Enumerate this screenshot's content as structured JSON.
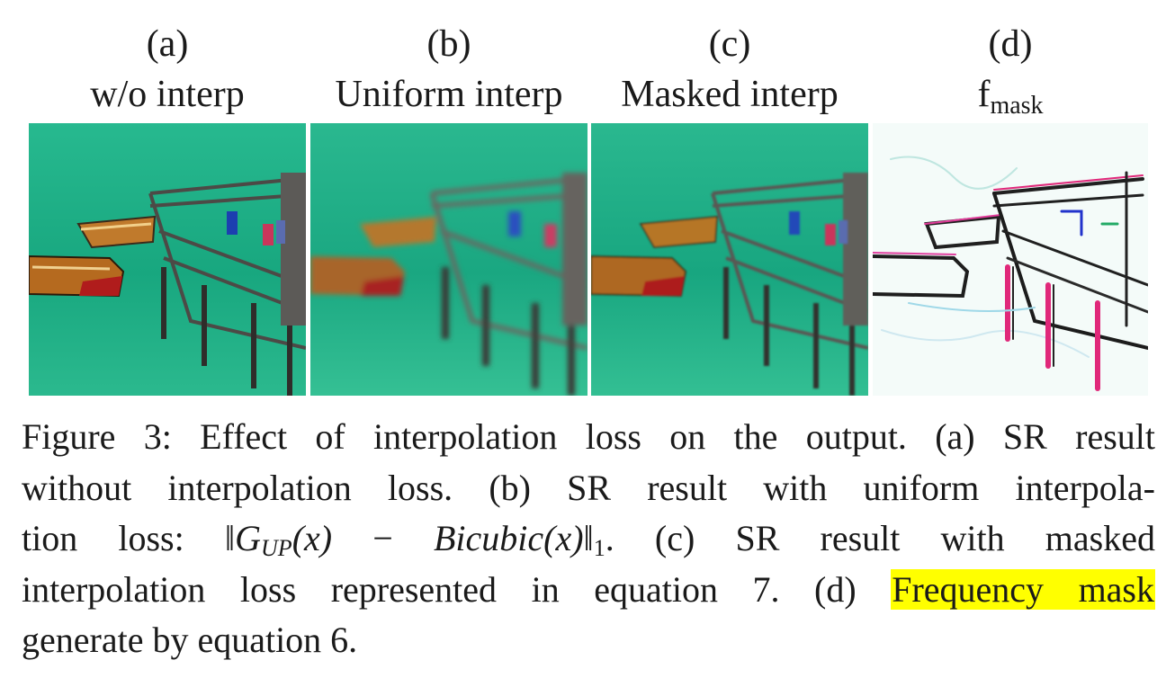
{
  "panels": [
    {
      "letter": "(a)",
      "title": "w/o interp",
      "image_kind": "sharp-aliased"
    },
    {
      "letter": "(b)",
      "title": "Uniform interp",
      "image_kind": "blurred"
    },
    {
      "letter": "(c)",
      "title": "Masked interp",
      "image_kind": "clean"
    },
    {
      "letter": "(d)",
      "title_base": "f",
      "title_sub": "mask",
      "image_kind": "frequency-mask"
    }
  ],
  "caption": {
    "l1": "Figure 3: Effect of interpolation loss on the output. (a) SR result",
    "l2": "without interpolation loss. (b) SR result with uniform interpola-",
    "l3_pre": "tion loss: ",
    "l3_math_norm_open": "‖",
    "l3_math_g": "G",
    "l3_math_g_sub": "UP",
    "l3_math_x1": "(x)",
    "l3_math_minus": " − ",
    "l3_math_bicubic": "Bicubic",
    "l3_math_x2": "(x)",
    "l3_math_norm_close": "‖",
    "l3_math_norm_sub": "1",
    "l3_post": ". (c) SR result with masked",
    "l4_pre": "interpolation loss represented in equation 7. (d) ",
    "l4_highlight": "Frequency mask",
    "l5": "generate by equation 6."
  },
  "colors": {
    "water": "#1fb08a",
    "water_light": "#3cc79c",
    "dock_wood": "#5b5650",
    "boat_hull": "#b8661f",
    "boat_red": "#b82222",
    "highlight": "#ffff00"
  }
}
